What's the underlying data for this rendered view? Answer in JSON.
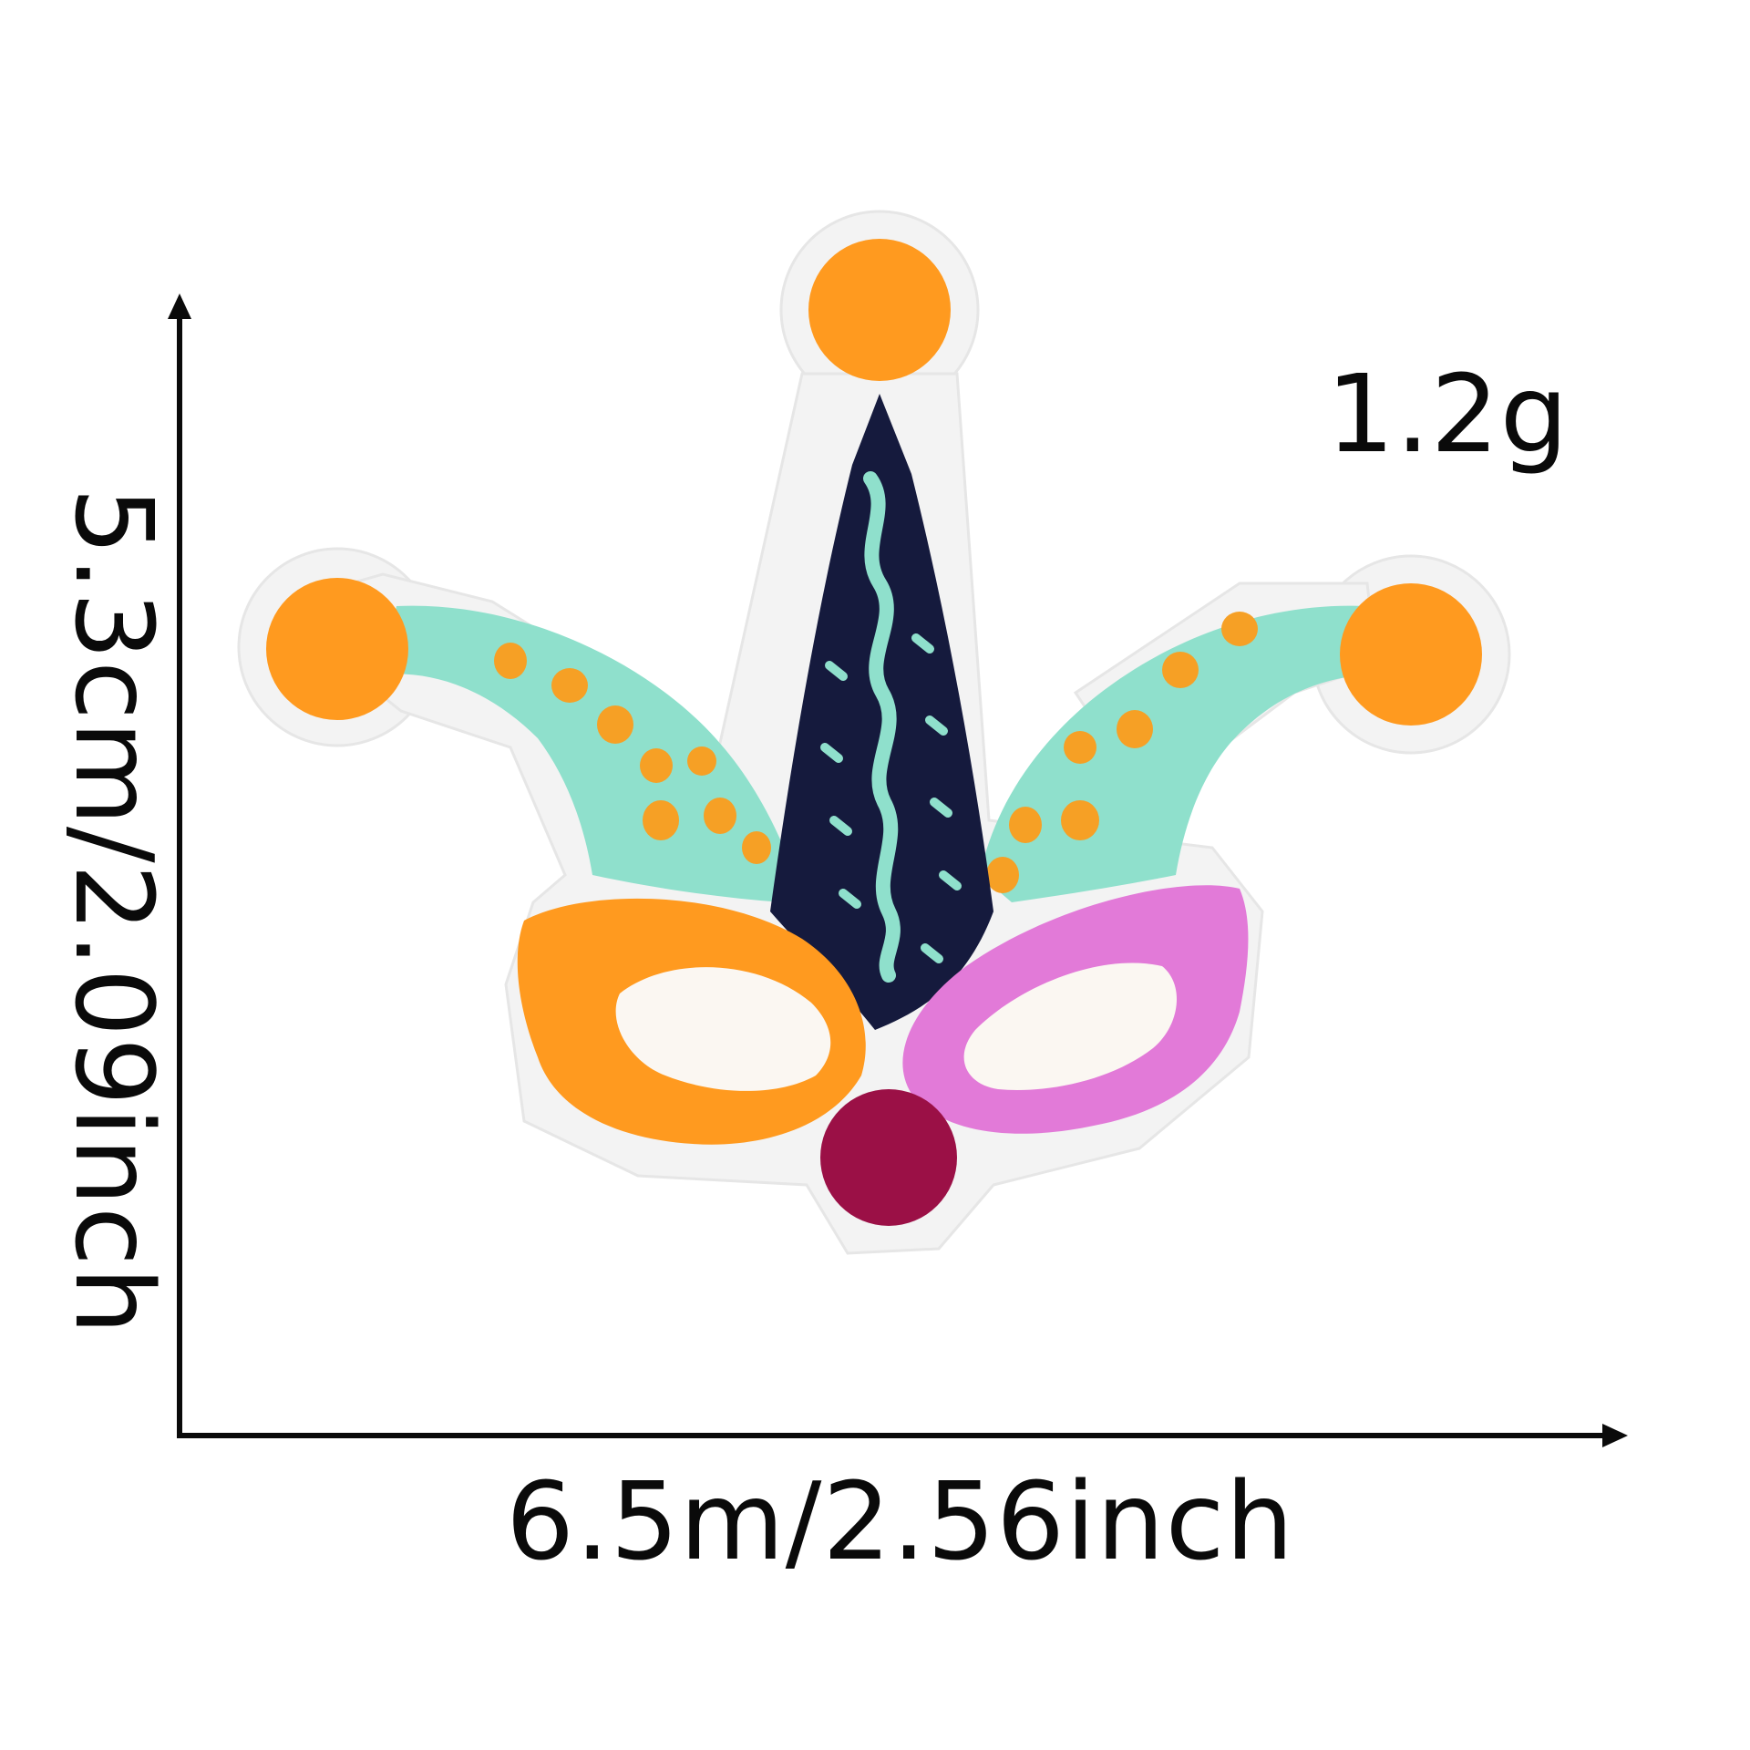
{
  "labels": {
    "weight": "1.2g",
    "width": "6.5m/2.56inch",
    "height": "5.3cm/2.09inch"
  },
  "colors": {
    "felt": "#f4f4f4",
    "orange": "#ff9a1f",
    "turquoise": "#8fe0cc",
    "navy": "#151a3d",
    "pink": "#e27ad8",
    "maroon": "#9b1046",
    "eye_white": "#fbf7f2",
    "ink": "#0a0a0a"
  }
}
